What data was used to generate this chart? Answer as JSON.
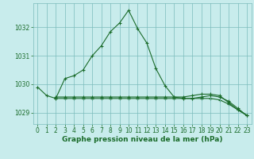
{
  "title": "Graphe pression niveau de la mer (hPa)",
  "background_color": "#c8ecec",
  "grid_color": "#7bbcbc",
  "line_color": "#1a6b2a",
  "xlim": [
    -0.5,
    23.5
  ],
  "ylim": [
    1028.6,
    1032.85
  ],
  "yticks": [
    1029,
    1030,
    1031,
    1032
  ],
  "xticks": [
    0,
    1,
    2,
    3,
    4,
    5,
    6,
    7,
    8,
    9,
    10,
    11,
    12,
    13,
    14,
    15,
    16,
    17,
    18,
    19,
    20,
    21,
    22,
    23
  ],
  "series1_x": [
    0,
    1,
    2,
    3,
    4,
    5,
    6,
    7,
    8,
    9,
    10,
    11,
    12,
    13,
    14,
    15,
    16,
    17,
    18,
    19,
    20,
    21,
    22,
    23
  ],
  "series1_y": [
    1029.9,
    1029.6,
    1029.5,
    1030.2,
    1030.3,
    1030.5,
    1031.0,
    1031.35,
    1031.85,
    1032.15,
    1032.6,
    1031.95,
    1031.45,
    1030.55,
    1029.95,
    1029.55,
    1029.5,
    1029.5,
    1029.55,
    1029.6,
    1029.55,
    1029.4,
    1029.15,
    1028.9
  ],
  "series2_x": [
    2,
    3,
    4,
    5,
    6,
    7,
    8,
    9,
    10,
    11,
    12,
    13,
    14,
    15,
    16,
    17,
    18,
    19,
    20,
    21,
    22,
    23
  ],
  "series2_y": [
    1029.55,
    1029.55,
    1029.55,
    1029.55,
    1029.55,
    1029.55,
    1029.55,
    1029.55,
    1029.55,
    1029.55,
    1029.55,
    1029.55,
    1029.55,
    1029.55,
    1029.55,
    1029.6,
    1029.65,
    1029.65,
    1029.6,
    1029.35,
    1029.1,
    1028.9
  ],
  "series3_x": [
    2,
    3,
    4,
    5,
    6,
    7,
    8,
    9,
    10,
    11,
    12,
    13,
    14,
    15,
    16,
    17,
    18,
    19,
    20,
    21,
    22,
    23
  ],
  "series3_y": [
    1029.5,
    1029.5,
    1029.5,
    1029.5,
    1029.5,
    1029.5,
    1029.5,
    1029.5,
    1029.5,
    1029.5,
    1029.5,
    1029.5,
    1029.5,
    1029.5,
    1029.5,
    1029.5,
    1029.5,
    1029.5,
    1029.45,
    1029.3,
    1029.1,
    1028.9
  ],
  "marker": "+",
  "marker_size": 3.5,
  "linewidth": 0.8,
  "tick_fontsize": 5.5,
  "title_fontsize": 6.5
}
